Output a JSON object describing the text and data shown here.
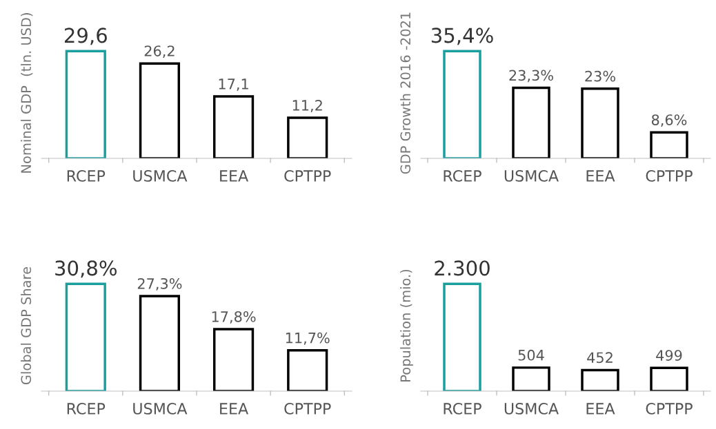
{
  "chart_data": [
    {
      "type": "bar",
      "ylabel": "Nominal GDP  (tln. USD)",
      "categories": [
        "RCEP",
        "USMCA",
        "EEA",
        "CPTPP"
      ],
      "values": [
        29.6,
        26.2,
        17.1,
        11.2
      ],
      "value_labels": [
        "29,6",
        "26,2",
        "17,1",
        "11,2"
      ],
      "colors": [
        "#1a9e9e",
        "#000000",
        "#000000",
        "#000000"
      ],
      "grid": false,
      "legend": false
    },
    {
      "type": "bar",
      "ylabel": "GDP Growth 2016 -2021",
      "categories": [
        "RCEP",
        "USMCA",
        "EEA",
        "CPTPP"
      ],
      "values": [
        35.4,
        23.3,
        23,
        8.6
      ],
      "value_labels": [
        "35,4%",
        "23,3%",
        "23%",
        "8,6%"
      ],
      "colors": [
        "#1a9e9e",
        "#000000",
        "#000000",
        "#000000"
      ],
      "grid": false,
      "legend": false
    },
    {
      "type": "bar",
      "ylabel": "Global GDP Share",
      "categories": [
        "RCEP",
        "USMCA",
        "EEA",
        "CPTPP"
      ],
      "values": [
        30.8,
        27.3,
        17.8,
        11.7
      ],
      "value_labels": [
        "30,8%",
        "27,3%",
        "17,8%",
        "11,7%"
      ],
      "colors": [
        "#1a9e9e",
        "#000000",
        "#000000",
        "#000000"
      ],
      "grid": false,
      "legend": false
    },
    {
      "type": "bar",
      "ylabel": "Population (mio.)",
      "categories": [
        "RCEP",
        "USMCA",
        "EEA",
        "CPTPP"
      ],
      "values": [
        2300,
        504,
        452,
        499
      ],
      "value_labels": [
        "2.300",
        "504",
        "452",
        "499"
      ],
      "colors": [
        "#1a9e9e",
        "#000000",
        "#000000",
        "#000000"
      ],
      "grid": false,
      "legend": false
    }
  ]
}
